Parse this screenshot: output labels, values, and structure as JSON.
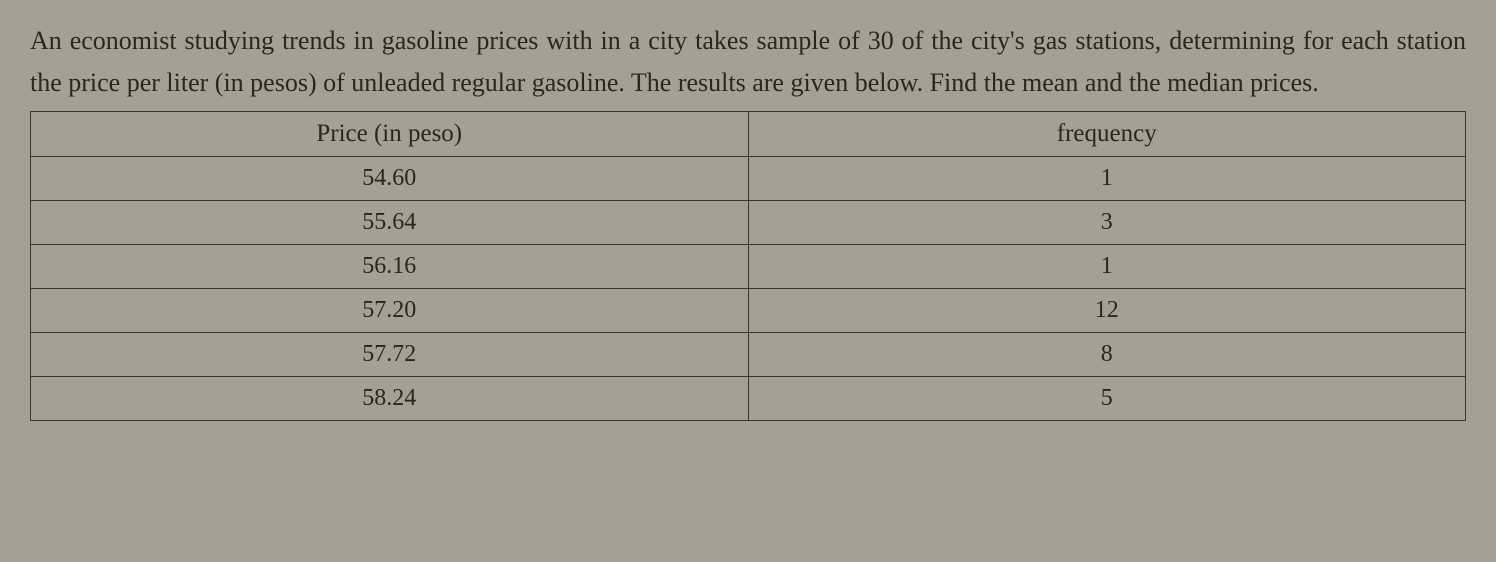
{
  "paragraph": {
    "text": "An economist studying trends in gasoline prices with in a city takes sample of 30 of the city's gas stations, determining for each station the price per liter (in pesos) of unleaded regular gasoline. The results are given below. Find the mean and the median prices."
  },
  "table": {
    "header_price": "Price (in peso)",
    "header_frequency": "frequency",
    "rows": [
      {
        "price": "54.60",
        "frequency": "1"
      },
      {
        "price": "55.64",
        "frequency": "3"
      },
      {
        "price": "56.16",
        "frequency": "1"
      },
      {
        "price": "57.20",
        "frequency": "12"
      },
      {
        "price": "57.72",
        "frequency": "8"
      },
      {
        "price": "58.24",
        "frequency": "5"
      }
    ]
  },
  "style": {
    "background_color": "#a89f94",
    "text_color": "#2a2622",
    "border_color": "#3a342d",
    "paragraph_fontsize": 26,
    "table_fontsize": 24
  }
}
